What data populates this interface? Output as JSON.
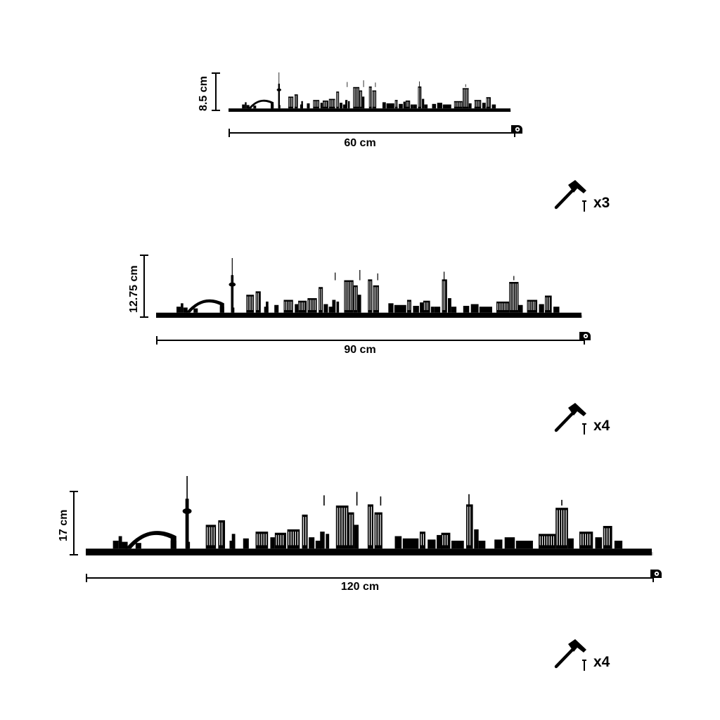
{
  "variants": [
    {
      "width_label": "60 cm",
      "height_label": "8.5 cm",
      "nails_label": "x3",
      "icons": {
        "tape": "tape-measure-icon",
        "hammer": "hammer-icon",
        "nail": "nail-icon"
      }
    },
    {
      "width_label": "90 cm",
      "height_label": "12.75 cm",
      "nails_label": "x4",
      "icons": {
        "tape": "tape-measure-icon",
        "hammer": "hammer-icon",
        "nail": "nail-icon"
      }
    },
    {
      "width_label": "120 cm",
      "height_label": "17 cm",
      "nails_label": "x4",
      "icons": {
        "tape": "tape-measure-icon",
        "hammer": "hammer-icon",
        "nail": "nail-icon"
      }
    }
  ],
  "colors": {
    "skyline": "#000000",
    "shadow": "#bdbdbd",
    "background": "#ffffff"
  }
}
